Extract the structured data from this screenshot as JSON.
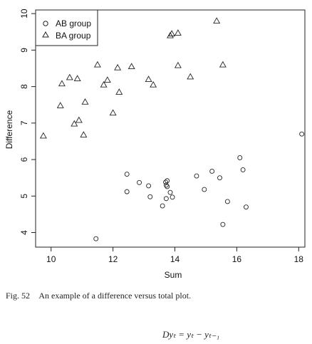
{
  "chart_data": {
    "type": "scatter",
    "xlabel": "Sum",
    "ylabel": "Difference",
    "xlim": [
      9.5,
      18.2
    ],
    "ylim": [
      3.6,
      10.1
    ],
    "x_ticks": [
      10,
      12,
      14,
      16,
      18
    ],
    "y_ticks": [
      4,
      5,
      6,
      7,
      8,
      9,
      10
    ],
    "legend_position": "top-left",
    "series": [
      {
        "name": "AB group",
        "marker": "circle",
        "color": "#222222",
        "points": [
          [
            11.45,
            3.83
          ],
          [
            12.45,
            5.6
          ],
          [
            12.45,
            5.12
          ],
          [
            12.85,
            5.37
          ],
          [
            13.15,
            5.28
          ],
          [
            13.2,
            4.98
          ],
          [
            13.6,
            4.73
          ],
          [
            13.7,
            5.38
          ],
          [
            13.72,
            5.3
          ],
          [
            13.75,
            5.42
          ],
          [
            13.75,
            5.26
          ],
          [
            13.72,
            4.93
          ],
          [
            13.85,
            5.1
          ],
          [
            13.92,
            4.97
          ],
          [
            14.7,
            5.55
          ],
          [
            14.95,
            5.18
          ],
          [
            15.2,
            5.68
          ],
          [
            15.45,
            5.5
          ],
          [
            15.55,
            4.22
          ],
          [
            15.7,
            4.85
          ],
          [
            16.1,
            6.05
          ],
          [
            16.2,
            5.72
          ],
          [
            16.3,
            4.7
          ],
          [
            18.1,
            6.7
          ]
        ]
      },
      {
        "name": "BA group",
        "marker": "triangle",
        "color": "#222222",
        "points": [
          [
            9.75,
            6.65
          ],
          [
            10.3,
            7.48
          ],
          [
            10.35,
            8.08
          ],
          [
            10.6,
            8.25
          ],
          [
            10.75,
            6.98
          ],
          [
            10.85,
            8.22
          ],
          [
            10.9,
            7.08
          ],
          [
            11.05,
            6.68
          ],
          [
            11.1,
            7.58
          ],
          [
            11.5,
            8.6
          ],
          [
            11.7,
            8.05
          ],
          [
            11.82,
            8.18
          ],
          [
            12.0,
            7.28
          ],
          [
            12.15,
            8.52
          ],
          [
            12.2,
            7.85
          ],
          [
            12.6,
            8.55
          ],
          [
            13.15,
            8.2
          ],
          [
            13.3,
            8.05
          ],
          [
            13.85,
            9.4
          ],
          [
            13.9,
            9.45
          ],
          [
            14.1,
            9.47
          ],
          [
            14.1,
            8.58
          ],
          [
            14.5,
            8.27
          ],
          [
            15.35,
            9.8
          ],
          [
            15.55,
            8.6
          ]
        ]
      }
    ]
  },
  "caption": {
    "figure_number": "Fig. 52",
    "text": "An example of a difference versus total plot."
  },
  "formula": "Dyₜ = yₜ − yₜ₋₁"
}
